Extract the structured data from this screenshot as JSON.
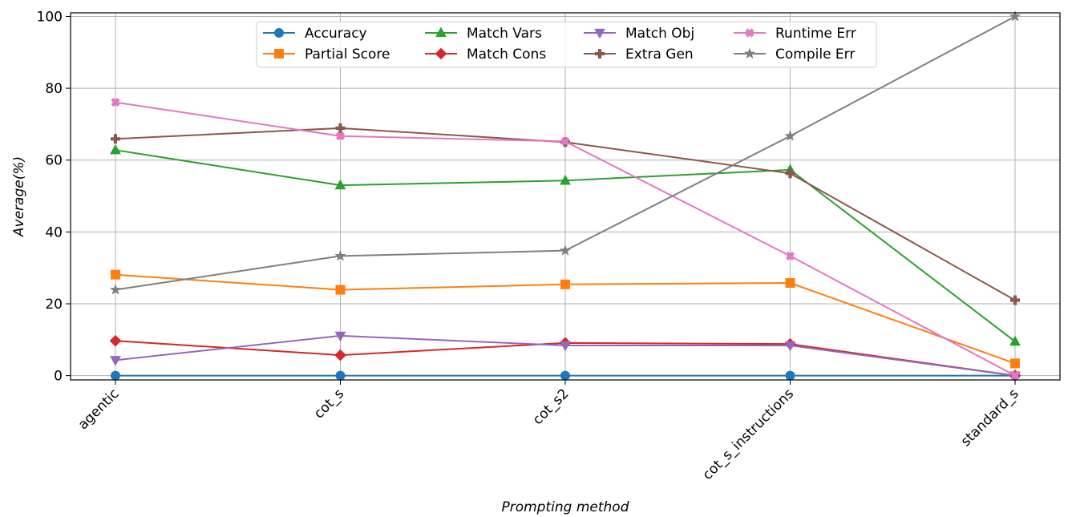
{
  "chart_data": {
    "type": "line",
    "title": "",
    "xlabel": "Prompting method",
    "ylabel": "Average(%)",
    "categories": [
      "agentic",
      "cot_s",
      "cot_s2",
      "cot_s_instructions",
      "standard_s"
    ],
    "ylim": [
      -1.2,
      101
    ],
    "yticks": [
      0,
      20,
      40,
      60,
      80,
      100
    ],
    "grid": true,
    "legend": {
      "placement": "top-center",
      "columns": 4
    },
    "series": [
      {
        "name": "Accuracy",
        "color": "#1f77b4",
        "marker": "circle",
        "values": [
          0,
          0,
          0,
          0,
          0
        ]
      },
      {
        "name": "Partial Score",
        "color": "#ff7f0e",
        "marker": "square",
        "values": [
          28.1,
          23.9,
          25.4,
          25.8,
          3.4
        ]
      },
      {
        "name": "Match Vars",
        "color": "#2ca02c",
        "marker": "triangle-up",
        "values": [
          62.8,
          53.0,
          54.3,
          57.3,
          9.5
        ]
      },
      {
        "name": "Match Cons",
        "color": "#d62728",
        "marker": "diamond",
        "values": [
          9.7,
          5.7,
          9.1,
          8.8,
          0
        ]
      },
      {
        "name": "Match Obj",
        "color": "#9467bd",
        "marker": "triangle-down",
        "values": [
          4.3,
          11.1,
          8.4,
          8.4,
          0
        ]
      },
      {
        "name": "Extra Gen",
        "color": "#8c564b",
        "marker": "plus",
        "values": [
          65.9,
          68.9,
          65.0,
          56.3,
          21.0
        ]
      },
      {
        "name": "Runtime Err",
        "color": "#e377c2",
        "marker": "x-filled",
        "values": [
          76.1,
          66.7,
          65.2,
          33.3,
          0
        ]
      },
      {
        "name": "Compile Err",
        "color": "#7f7f7f",
        "marker": "star",
        "values": [
          23.9,
          33.3,
          34.8,
          66.7,
          100
        ]
      }
    ]
  }
}
